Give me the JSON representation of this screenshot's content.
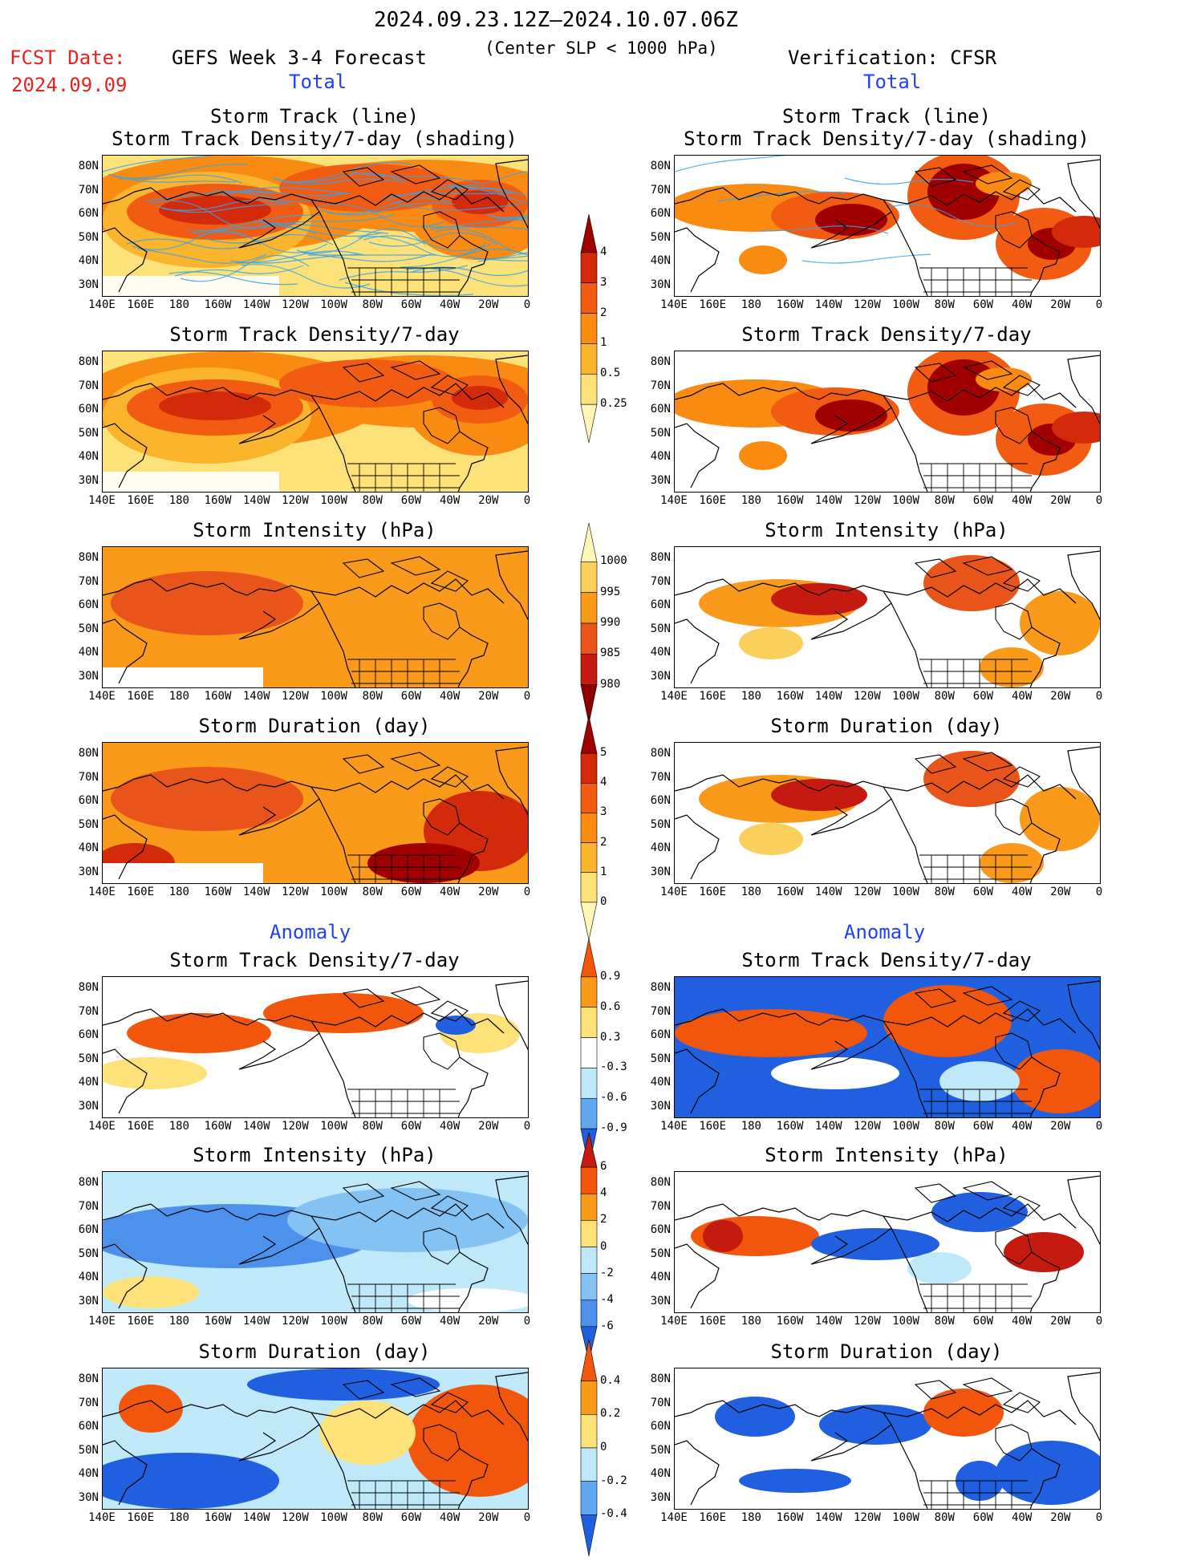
{
  "header": {
    "date_range": "2024.09.23.12Z–2024.10.07.06Z",
    "fcst_label": "FCST Date:",
    "fcst_date": "2024.09.09",
    "left_title": "GEFS Week 3-4 Forecast",
    "center_note": "(Center SLP < 1000 hPa)",
    "right_title": "Verification: CFSR",
    "total_left": "Total",
    "total_right": "Total",
    "anomaly_left": "Anomaly",
    "anomaly_right": "Anomaly"
  },
  "axes": {
    "lat_ticks": [
      "80N",
      "70N",
      "60N",
      "50N",
      "40N",
      "30N"
    ],
    "lon_ticks": [
      "140E",
      "160E",
      "180",
      "160W",
      "140W",
      "120W",
      "100W",
      "80W",
      "60W",
      "40W",
      "20W",
      "0"
    ]
  },
  "panels": [
    {
      "id": "gefs-track",
      "title": "Storm Track (line)",
      "title2": "Storm Track Density/7-day (shading)"
    },
    {
      "id": "cfsr-track",
      "title": "Storm Track (line)",
      "title2": "Storm Track Density/7-day (shading)"
    },
    {
      "id": "gefs-density",
      "title": "Storm Track Density/7-day"
    },
    {
      "id": "cfsr-density",
      "title": "Storm Track Density/7-day"
    },
    {
      "id": "gefs-intensity",
      "title": "Storm Intensity (hPa)"
    },
    {
      "id": "cfsr-intensity",
      "title": "Storm Intensity (hPa)"
    },
    {
      "id": "gefs-duration",
      "title": "Storm Duration (day)"
    },
    {
      "id": "cfsr-duration",
      "title": "Storm Duration (day)"
    },
    {
      "id": "gefs-density-anom",
      "title": "Storm Track Density/7-day"
    },
    {
      "id": "cfsr-density-anom",
      "title": "Storm Track Density/7-day"
    },
    {
      "id": "gefs-intensity-anom",
      "title": "Storm Intensity (hPa)"
    },
    {
      "id": "cfsr-intensity-anom",
      "title": "Storm Intensity (hPa)"
    },
    {
      "id": "gefs-duration-anom",
      "title": "Storm Duration (day)"
    },
    {
      "id": "cfsr-duration-anom",
      "title": "Storm Duration (day)"
    }
  ],
  "colorbars": [
    {
      "id": "density",
      "labels": [
        "4",
        "3",
        "2",
        "1",
        "0.5",
        "0.25"
      ],
      "colors": [
        "#a00000",
        "#d42a0c",
        "#f25b12",
        "#f98a12",
        "#fbb52c",
        "#fde27a",
        "#fff6b8"
      ]
    },
    {
      "id": "intensity",
      "labels": [
        "1000",
        "995",
        "990",
        "985",
        "980"
      ],
      "colors": [
        "#fff6b8",
        "#fbcf5c",
        "#f99a1a",
        "#e8541a",
        "#c41a10",
        "#8e0000"
      ]
    },
    {
      "id": "duration",
      "labels": [
        "5",
        "4",
        "3",
        "2",
        "1",
        "0"
      ],
      "colors": [
        "#a00000",
        "#d42a0c",
        "#f25b12",
        "#f98a12",
        "#fbb52c",
        "#fde27a",
        "#fff6b8"
      ]
    },
    {
      "id": "density-anom",
      "labels": [
        "0.9",
        "0.6",
        "0.3",
        "-0.3",
        "-0.6",
        "-0.9"
      ],
      "colors": [
        "#f2560c",
        "#f99a1a",
        "#fde27a",
        "#ffffff",
        "#bfe8f8",
        "#5fa8f0",
        "#1f5fe0"
      ]
    },
    {
      "id": "intensity-anom",
      "labels": [
        "6",
        "4",
        "2",
        "0",
        "-2",
        "-4",
        "-6"
      ],
      "colors": [
        "#c41a10",
        "#f2560c",
        "#f99a1a",
        "#fde27a",
        "#bfe8f8",
        "#84c2f4",
        "#4c92ec",
        "#1f5fe0"
      ]
    },
    {
      "id": "duration-anom",
      "labels": [
        "0.4",
        "0.2",
        "0",
        "-0.2",
        "-0.4"
      ],
      "colors": [
        "#f2560c",
        "#f99a1a",
        "#fde27a",
        "#bfe8f8",
        "#5fa8f0",
        "#1f5fe0"
      ]
    }
  ],
  "colors": {
    "density_levels": [
      "#fff6b8",
      "#fde27a",
      "#fbb52c",
      "#f98a12",
      "#f25b12",
      "#d42a0c",
      "#a00000"
    ],
    "track_line": "#3aa2e8"
  }
}
